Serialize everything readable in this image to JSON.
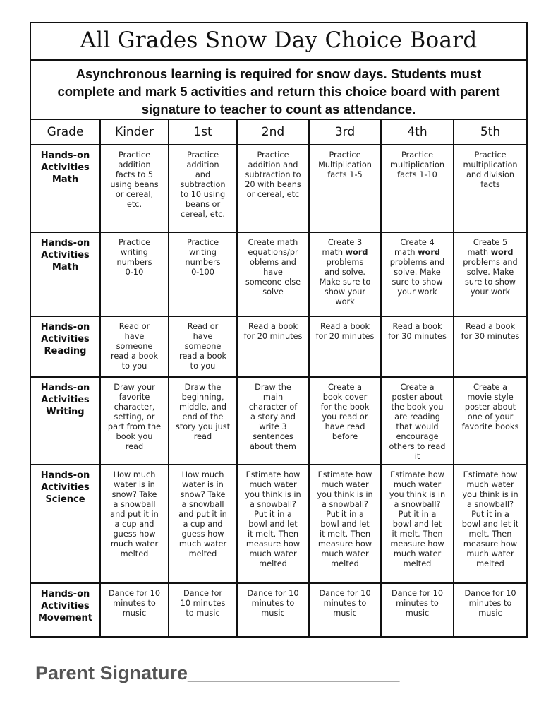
{
  "title": "All Grades Snow Day Choice Board",
  "intro": "Asynchronous learning is required for snow days. Students must\ncomplete and mark  5 activities and return this choice board with parent\nsignature  to teacher to count as attendance.",
  "header": [
    "Grade",
    "Kinder",
    "1st",
    "2nd",
    "3rd",
    "4th",
    "5th"
  ],
  "emphasis_word": "word",
  "rows": [
    {
      "label": "Hands-on\nActivities\nMath",
      "cells": [
        "Practice\naddition\nfacts to 5\nusing beans\nor cereal,\netc.",
        "Practice\naddition\nand\nsubtraction\nto 10 using\nbeans or\ncereal, etc.",
        "Practice\naddition and\nsubtraction to\n20 with beans\nor cereal, etc",
        "Practice\nMultiplication\nfacts 1-5",
        "Practice\nmultiplication\nfacts 1-10",
        "Practice\nmultiplication\nand division\nfacts"
      ]
    },
    {
      "label": "Hands-on\nActivities\nMath",
      "cells": [
        "Practice\nwriting\nnumbers\n0-10",
        "Practice\nwriting\nnumbers\n0-100",
        "Create math\nequations/pr\noblems  and\nhave\nsomeone else\nsolve",
        "Create 3\nmath word\nproblems\nand solve.\nMake sure to\nshow your\nwork",
        "Create 4\nmath word\nproblems and\nsolve. Make\nsure to show\nyour work",
        "Create 5\nmath word\nproblems and\nsolve. Make\nsure to show\nyour work"
      ]
    },
    {
      "label": "Hands-on\nActivities\nReading",
      "cells": [
        "Read or\nhave\nsomeone\nread a book\nto you",
        "Read or\nhave\nsomeone\nread a book\nto you",
        "Read a book\nfor 20 minutes",
        "Read a book\nfor 20 minutes",
        "Read a book\nfor 30 minutes",
        "Read a book\nfor 30 minutes"
      ]
    },
    {
      "label": "Hands-on\nActivities\nWriting",
      "cells": [
        "Draw your\nfavorite\ncharacter,\nsetting, or\npart from the\nbook you\nread",
        "Draw the\nbeginning,\nmiddle, and\nend of the\nstory you just\nread",
        "Draw the\nmain\ncharacter of\na story and\nwrite 3\nsentences\nabout them",
        "Create a\nbook cover\nfor the book\nyou read or\nhave read\nbefore",
        "Create a\nposter about\nthe book you\nare reading\nthat would\nencourage\nothers to read\nit",
        "Create a\nmovie style\nposter about\none of your\nfavorite books"
      ]
    },
    {
      "label": "Hands-on\nActivities\nScience",
      "cells": [
        "How much\nwater is in\nsnow? Take\na snowball\nand put it in\na cup and\nguess how\nmuch water\nmelted",
        "How much\nwater is in\nsnow? Take\na snowball\nand put it in\na cup and\nguess how\nmuch water\nmelted",
        "Estimate how\nmuch water\nyou think is in\na snowball?\nPut it in a\nbowl and let\nit melt. Then\nmeasure how\nmuch water\nmelted",
        "Estimate how\nmuch water\nyou think is in\na snowball?\nPut it in a\nbowl and let\nit melt. Then\nmeasure how\nmuch water\nmelted",
        "Estimate how\nmuch water\nyou think is in\na snowball?\nPut it in a\nbowl and let\nit melt. Then\nmeasure how\nmuch water\nmelted",
        "Estimate how\nmuch water\nyou think is in\na snowball?\nPut it in a\nbowl and let it\nmelt. Then\nmeasure how\nmuch water\nmelted"
      ]
    },
    {
      "label": "Hands-on\nActivities\nMovement",
      "cells": [
        "Dance for 10\nminutes to\nmusic",
        "Dance for\n10 minutes\nto music",
        "Dance for 10\nminutes to\nmusic",
        "Dance for 10\nminutes to\nmusic",
        "Dance for 10\nminutes to\nmusic",
        "Dance for 10\nminutes to\nmusic"
      ]
    }
  ],
  "signature_label": "Parent Signature____________________"
}
